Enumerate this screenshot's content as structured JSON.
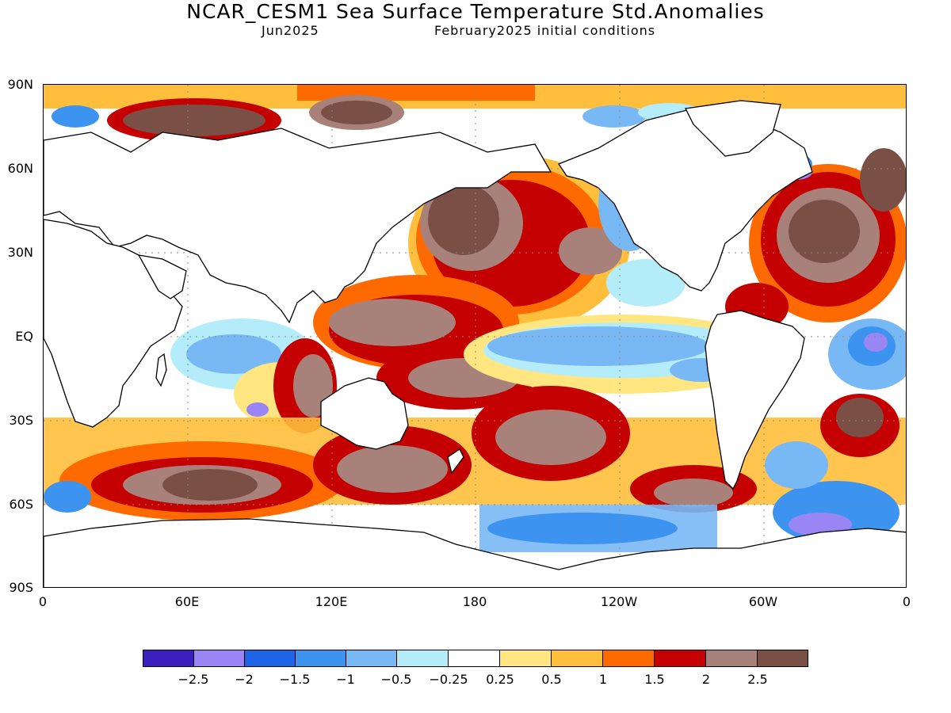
{
  "header": {
    "title": "NCAR_CESM1 Sea Surface Temperature Std.Anomalies",
    "valid_month": "Jun2025",
    "init": "February2025 initial conditions"
  },
  "map": {
    "lat_labels": [
      "90N",
      "60N",
      "30N",
      "EQ",
      "30S",
      "60S",
      "90S"
    ],
    "lon_labels": [
      "0",
      "60E",
      "120E",
      "180",
      "120W",
      "60W",
      "0"
    ]
  },
  "colorbar": {
    "colors": [
      "#3c1fbf",
      "#9a85f5",
      "#1f63e6",
      "#3d94f0",
      "#78b8f5",
      "#b5ecfa",
      "#ffffff",
      "#ffe680",
      "#ffbf3c",
      "#ff6a00",
      "#c40000",
      "#a8827a",
      "#7a5046"
    ],
    "labels": [
      "−2.5",
      "−2",
      "−1.5",
      "−1",
      "−0.5",
      "−0.25",
      "0.25",
      "0.5",
      "1",
      "1.5",
      "2",
      "2.5"
    ]
  },
  "colors": {
    "land": "#ffffff",
    "coast": "#000000"
  }
}
